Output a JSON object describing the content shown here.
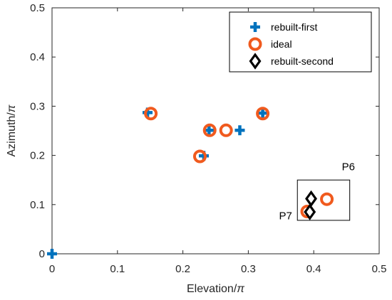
{
  "chart_data": {
    "type": "scatter",
    "title": "",
    "xlabel": "Elevation/",
    "xlabel_symbol": "π",
    "ylabel": "Azimuth/",
    "ylabel_symbol": "π",
    "xlim": [
      0,
      0.5
    ],
    "ylim": [
      0,
      0.5
    ],
    "xticks": [
      0,
      0.1,
      0.2,
      0.3,
      0.4,
      0.5
    ],
    "yticks": [
      0,
      0.1,
      0.2,
      0.3,
      0.4,
      0.5
    ],
    "xtick_labels": [
      "0",
      "0.1",
      "0.2",
      "0.3",
      "0.4",
      "0.5"
    ],
    "ytick_labels": [
      "0",
      "0.1",
      "0.2",
      "0.3",
      "0.4",
      "0.5"
    ],
    "grid": false,
    "legend_position": "top-right",
    "series": [
      {
        "name": "rebuilt-first",
        "marker": "plus",
        "color": "#0072BD",
        "points": [
          {
            "x": 0.0,
            "y": 0.0
          },
          {
            "x": 0.146,
            "y": 0.287
          },
          {
            "x": 0.232,
            "y": 0.199
          },
          {
            "x": 0.24,
            "y": 0.251
          },
          {
            "x": 0.287,
            "y": 0.251
          },
          {
            "x": 0.322,
            "y": 0.286
          }
        ]
      },
      {
        "name": "ideal",
        "marker": "circle",
        "color": "#F05A1E",
        "points": [
          {
            "x": 0.151,
            "y": 0.285
          },
          {
            "x": 0.226,
            "y": 0.198
          },
          {
            "x": 0.241,
            "y": 0.251
          },
          {
            "x": 0.266,
            "y": 0.251
          },
          {
            "x": 0.322,
            "y": 0.285
          },
          {
            "x": 0.42,
            "y": 0.111
          },
          {
            "x": 0.39,
            "y": 0.086
          }
        ]
      },
      {
        "name": "rebuilt-second",
        "marker": "diamond",
        "color": "#000000",
        "points": [
          {
            "x": 0.396,
            "y": 0.112
          },
          {
            "x": 0.394,
            "y": 0.085
          }
        ]
      }
    ],
    "annotations": [
      {
        "text": "P6",
        "x": 0.443,
        "y": 0.17
      },
      {
        "text": "P7",
        "x": 0.347,
        "y": 0.07
      }
    ],
    "highlight_box": {
      "x0": 0.375,
      "x1": 0.455,
      "y0": 0.068,
      "y1": 0.15
    }
  }
}
